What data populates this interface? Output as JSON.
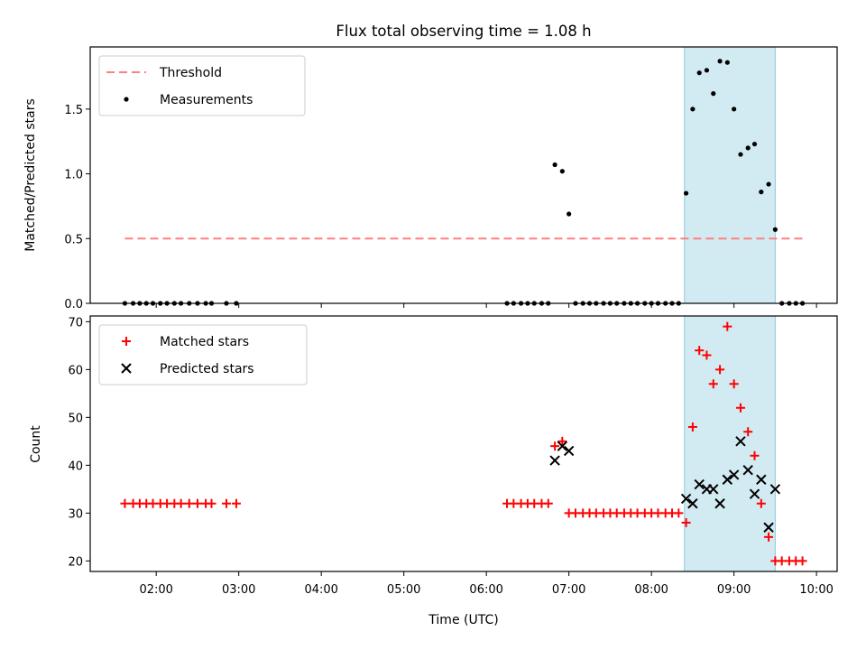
{
  "chart_data": {
    "type": "scatter",
    "title": "Flux total observing time = 1.08 h",
    "xlabel": "Time (UTC)",
    "x_unit": "hours UTC",
    "xlim": [
      1.2,
      10.25
    ],
    "xticks": [
      2,
      3,
      4,
      5,
      6,
      7,
      8,
      9,
      10
    ],
    "xtick_labels": [
      "02:00",
      "03:00",
      "04:00",
      "05:00",
      "06:00",
      "07:00",
      "08:00",
      "09:00",
      "10:00"
    ],
    "shaded_span": {
      "x0": 8.4,
      "x1": 9.5,
      "color": "#add8e6"
    },
    "panels": [
      {
        "ylabel": "Matched/Predicted stars",
        "ylim": [
          0,
          1.98
        ],
        "yticks": [
          0.0,
          0.5,
          1.0,
          1.5
        ],
        "ytick_labels": [
          "0.0",
          "0.5",
          "1.0",
          "1.5"
        ],
        "legend_position": "upper-left",
        "series": [
          {
            "name": "Threshold",
            "kind": "dashed-line",
            "color": "#ff7f7f",
            "x": [
              1.62,
              9.85
            ],
            "y": [
              0.5,
              0.5
            ]
          },
          {
            "name": "Measurements",
            "kind": "dot",
            "color": "#000000",
            "x": [
              1.62,
              1.72,
              1.8,
              1.88,
              1.96,
              2.05,
              2.13,
              2.22,
              2.3,
              2.4,
              2.5,
              2.6,
              2.67,
              2.85,
              2.97,
              6.25,
              6.33,
              6.42,
              6.5,
              6.58,
              6.67,
              6.75,
              6.83,
              6.92,
              7.0,
              7.08,
              7.17,
              7.25,
              7.33,
              7.42,
              7.5,
              7.58,
              7.67,
              7.75,
              7.83,
              7.92,
              8.0,
              8.08,
              8.17,
              8.25,
              8.33,
              8.42,
              8.5,
              8.58,
              8.67,
              8.75,
              8.83,
              8.92,
              9.0,
              9.08,
              9.17,
              9.25,
              9.33,
              9.42,
              9.5,
              9.58,
              9.67,
              9.75,
              9.83
            ],
            "y": [
              0,
              0,
              0,
              0,
              0,
              0,
              0,
              0,
              0,
              0,
              0,
              0,
              0,
              0,
              0,
              0,
              0,
              0,
              0,
              0,
              0,
              0,
              1.07,
              1.02,
              0.69,
              0,
              0,
              0,
              0,
              0,
              0,
              0,
              0,
              0,
              0,
              0,
              0,
              0,
              0,
              0,
              0,
              0.85,
              1.5,
              1.78,
              1.8,
              1.62,
              1.87,
              1.86,
              1.5,
              1.15,
              1.2,
              1.23,
              0.86,
              0.92,
              0.57,
              0,
              0,
              0,
              0
            ]
          }
        ]
      },
      {
        "ylabel": "Count",
        "ylim": [
          17.8,
          71.2
        ],
        "yticks": [
          20,
          30,
          40,
          50,
          60,
          70
        ],
        "ytick_labels": [
          "20",
          "30",
          "40",
          "50",
          "60",
          "70"
        ],
        "legend_position": "upper-left",
        "series": [
          {
            "name": "Matched stars",
            "kind": "plus",
            "color": "#ff0000",
            "x": [
              1.62,
              1.72,
              1.8,
              1.88,
              1.96,
              2.05,
              2.13,
              2.22,
              2.3,
              2.4,
              2.5,
              2.6,
              2.67,
              2.85,
              2.97,
              6.25,
              6.33,
              6.42,
              6.5,
              6.58,
              6.67,
              6.75,
              6.83,
              6.92,
              7.0,
              7.08,
              7.17,
              7.25,
              7.33,
              7.42,
              7.5,
              7.58,
              7.67,
              7.75,
              7.83,
              7.92,
              8.0,
              8.08,
              8.17,
              8.25,
              8.33,
              8.42,
              8.5,
              8.58,
              8.67,
              8.75,
              8.83,
              8.92,
              9.0,
              9.08,
              9.17,
              9.25,
              9.33,
              9.42,
              9.5,
              9.58,
              9.67,
              9.75,
              9.83
            ],
            "y": [
              32,
              32,
              32,
              32,
              32,
              32,
              32,
              32,
              32,
              32,
              32,
              32,
              32,
              32,
              32,
              32,
              32,
              32,
              32,
              32,
              32,
              32,
              44,
              45,
              30,
              30,
              30,
              30,
              30,
              30,
              30,
              30,
              30,
              30,
              30,
              30,
              30,
              30,
              30,
              30,
              30,
              28,
              48,
              64,
              63,
              57,
              60,
              69,
              57,
              52,
              47,
              42,
              32,
              25,
              20,
              20,
              20,
              20,
              20
            ]
          },
          {
            "name": "Predicted stars",
            "kind": "x",
            "color": "#000000",
            "x": [
              6.83,
              6.92,
              7.0,
              8.42,
              8.5,
              8.58,
              8.67,
              8.75,
              8.83,
              8.92,
              9.0,
              9.08,
              9.17,
              9.25,
              9.33,
              9.42,
              9.5
            ],
            "y": [
              41,
              44,
              43,
              33,
              32,
              36,
              35,
              35,
              32,
              37,
              38,
              45,
              39,
              34,
              37,
              27,
              35
            ]
          }
        ]
      }
    ]
  }
}
